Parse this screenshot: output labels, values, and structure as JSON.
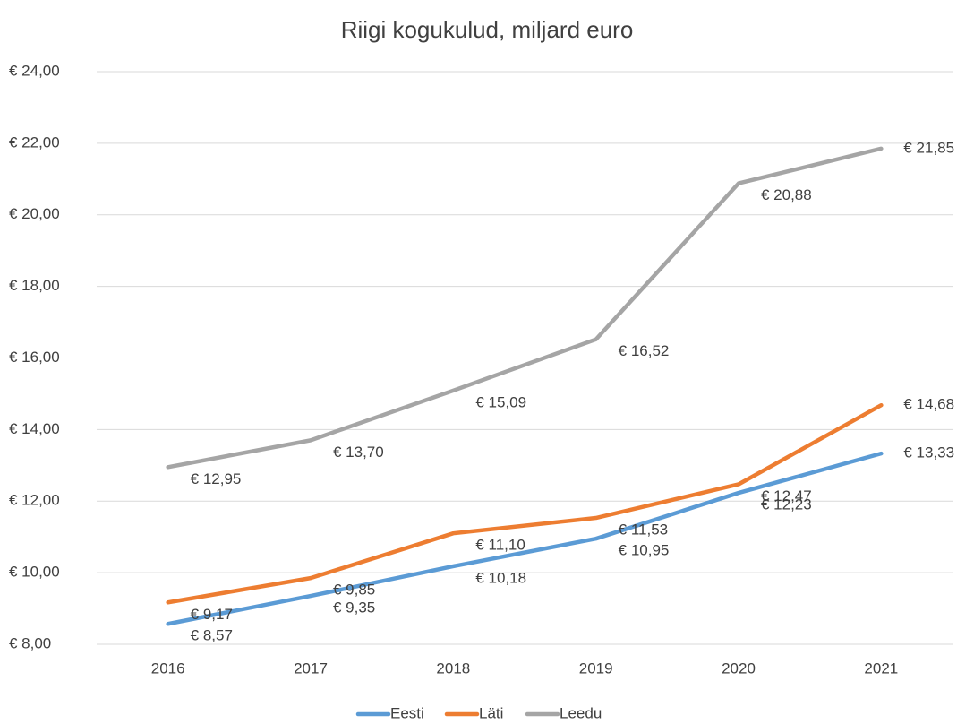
{
  "chart_data": {
    "type": "line",
    "title": "Riigi kogukulud, miljard euro",
    "categories": [
      "2016",
      "2017",
      "2018",
      "2019",
      "2020",
      "2021"
    ],
    "series": [
      {
        "name": "Eesti",
        "color": "#5b9bd5",
        "values": [
          8.57,
          9.35,
          10.18,
          10.95,
          12.23,
          13.33
        ],
        "value_labels": [
          "€ 8,57",
          "€ 9,35",
          "€ 10,18",
          "€ 10,95",
          "€ 12,23",
          "€ 13,33"
        ]
      },
      {
        "name": "Läti",
        "color": "#ed7d31",
        "values": [
          9.17,
          9.85,
          11.1,
          11.53,
          12.47,
          14.68
        ],
        "value_labels": [
          "€ 9,17",
          "€ 9,85",
          "€ 11,10",
          "€ 11,53",
          "€ 12,47",
          "€ 14,68"
        ]
      },
      {
        "name": "Leedu",
        "color": "#a5a5a5",
        "values": [
          12.95,
          13.7,
          15.09,
          16.52,
          20.88,
          21.85
        ],
        "value_labels": [
          "€ 12,95",
          "€ 13,70",
          "€ 15,09",
          "€ 16,52",
          "€ 20,88",
          "€ 21,85"
        ]
      }
    ],
    "ylim": [
      8,
      24
    ],
    "yticks": [
      {
        "value": 8,
        "label": "€ 8,00"
      },
      {
        "value": 10,
        "label": "€ 10,00"
      },
      {
        "value": 12,
        "label": "€ 12,00"
      },
      {
        "value": 14,
        "label": "€ 14,00"
      },
      {
        "value": 16,
        "label": "€ 16,00"
      },
      {
        "value": 18,
        "label": "€ 18,00"
      },
      {
        "value": 20,
        "label": "€ 20,00"
      },
      {
        "value": 22,
        "label": "€ 22,00"
      },
      {
        "value": 24,
        "label": "€ 24,00"
      }
    ],
    "grid": true,
    "legend": "bottom"
  }
}
